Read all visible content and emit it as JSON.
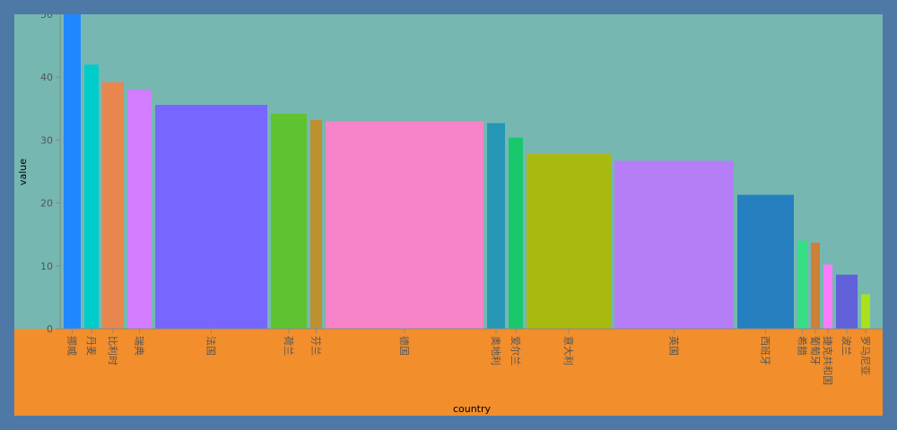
{
  "colors": {
    "page_border": "#4e79a7",
    "chart_background": "#f28e2c",
    "plot_background": "#76b7b2",
    "axis": "#888888",
    "tick_text": "#555555",
    "title_text": "#000000"
  },
  "chart_data": {
    "type": "bar",
    "variable_width": true,
    "xlabel": "country",
    "ylabel": "value",
    "ylim": [
      0,
      50
    ],
    "yticks": [
      0,
      10,
      20,
      30,
      40,
      50
    ],
    "grid": false,
    "bars": [
      {
        "category": "挪威",
        "value": 50,
        "color": "#1f87ff",
        "width": 19
      },
      {
        "category": "丹麦",
        "value": 42,
        "color": "#00cccc",
        "width": 16
      },
      {
        "category": "比利时",
        "value": 39.2,
        "color": "#e8864d",
        "width": 24
      },
      {
        "category": "瑞典",
        "value": 38,
        "color": "#d27dff",
        "width": 27
      },
      {
        "category": "法国",
        "value": 35.6,
        "color": "#7766ff",
        "width": 125
      },
      {
        "category": "荷兰",
        "value": 34.2,
        "color": "#5ec231",
        "width": 40
      },
      {
        "category": "芬兰",
        "value": 33.2,
        "color": "#bf9030",
        "width": 13
      },
      {
        "category": "德国",
        "value": 33,
        "color": "#f783c8",
        "width": 176
      },
      {
        "category": "奥地利",
        "value": 32.7,
        "color": "#2697b5",
        "width": 20
      },
      {
        "category": "爱尔兰",
        "value": 30.4,
        "color": "#19c76d",
        "width": 16
      },
      {
        "category": "意大利",
        "value": 27.8,
        "color": "#a8ba0e",
        "width": 94
      },
      {
        "category": "英国",
        "value": 26.7,
        "color": "#b57ef7",
        "width": 133
      },
      {
        "category": "西班牙",
        "value": 21.3,
        "color": "#2680bf",
        "width": 63
      },
      {
        "category": "希腊",
        "value": 14,
        "color": "#36de85",
        "width": 11
      },
      {
        "category": "葡萄牙",
        "value": 13.7,
        "color": "#cc8038",
        "width": 10
      },
      {
        "category": "捷克共和国",
        "value": 10.2,
        "color": "#fc7afc",
        "width": 10
      },
      {
        "category": "波兰",
        "value": 8.6,
        "color": "#6060d8",
        "width": 24
      },
      {
        "category": "罗马尼亚",
        "value": 5.5,
        "color": "#aae01e",
        "width": 10
      }
    ]
  }
}
